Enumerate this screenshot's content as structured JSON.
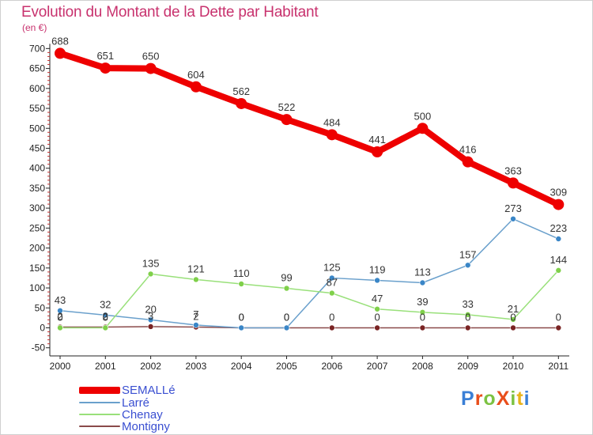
{
  "title": "Evolution du Montant de la Dette par Habitant",
  "subtitle": "(en €)",
  "logo": {
    "text": "ProXiti",
    "colors": [
      "#3a7fd6",
      "#e94e1b",
      "#7cc242",
      "#e94e1b",
      "#7cc242",
      "#e9b31b",
      "#3a7fd6"
    ]
  },
  "chart_data": {
    "type": "line",
    "x": [
      "2000",
      "2001",
      "2002",
      "2003",
      "2004",
      "2005",
      "2006",
      "2007",
      "2008",
      "2009",
      "2010",
      "2011"
    ],
    "ylim": [
      -50,
      700
    ],
    "yticks": [
      -50,
      0,
      50,
      100,
      150,
      200,
      250,
      300,
      350,
      400,
      450,
      500,
      550,
      600,
      650,
      700
    ],
    "grid": false,
    "legend_position": "bottom-left",
    "series": [
      {
        "name": "SEMALLé",
        "color": "#ee0000",
        "values": [
          688,
          651,
          650,
          604,
          562,
          522,
          484,
          441,
          500,
          416,
          363,
          309
        ],
        "labels": [
          "688",
          "651",
          "650",
          "604",
          "562",
          "522",
          "484",
          "441",
          "500",
          "416",
          "363",
          "309"
        ]
      },
      {
        "name": "Larré",
        "color": "#6aa0cc",
        "values": [
          43,
          32,
          20,
          7,
          0,
          0,
          125,
          119,
          113,
          157,
          273,
          223
        ],
        "labels": [
          "43",
          "32",
          "20",
          "7",
          "0",
          "0",
          "125",
          "119",
          "113",
          "157",
          "273",
          "223"
        ]
      },
      {
        "name": "Chenay",
        "color": "#99e07a",
        "values": [
          0,
          0,
          135,
          121,
          110,
          99,
          87,
          47,
          39,
          33,
          21,
          144
        ],
        "labels": [
          "0",
          "0",
          "135",
          "121",
          "110",
          "99",
          "87",
          "47",
          "39",
          "33",
          "21",
          "144"
        ]
      },
      {
        "name": "Montigny",
        "color": "#8a4a4a",
        "values": [
          2,
          2,
          3,
          2,
          0,
          0,
          0,
          0,
          0,
          0,
          0,
          0
        ],
        "labels": [
          "2",
          "2",
          "3",
          "2",
          "0",
          "0",
          "0",
          "0",
          "0",
          "0",
          "0",
          "0"
        ]
      }
    ]
  }
}
